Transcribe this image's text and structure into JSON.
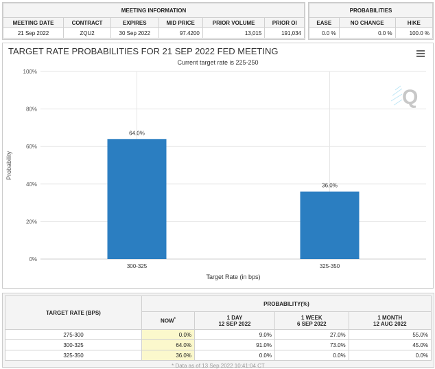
{
  "meeting_info": {
    "title": "MEETING INFORMATION",
    "headers": [
      "MEETING DATE",
      "CONTRACT",
      "EXPIRES",
      "MID PRICE",
      "PRIOR VOLUME",
      "PRIOR OI"
    ],
    "values": [
      "21 Sep 2022",
      "ZQU2",
      "30 Sep 2022",
      "97.4200",
      "13,015",
      "191,034"
    ]
  },
  "probabilities": {
    "title": "PROBABILITIES",
    "headers": [
      "EASE",
      "NO CHANGE",
      "HIKE"
    ],
    "values": [
      "0.0 %",
      "0.0 %",
      "100.0 %"
    ]
  },
  "chart_data": {
    "type": "bar",
    "title": "TARGET RATE PROBABILITIES FOR 21 SEP 2022 FED MEETING",
    "subtitle": "Current target rate is 225-250",
    "xlabel": "Target Rate (in bps)",
    "ylabel": "Probability",
    "categories": [
      "300-325",
      "325-350"
    ],
    "values": [
      64.0,
      36.0
    ],
    "data_labels": [
      "64.0%",
      "36.0%"
    ],
    "ylim": [
      0,
      100
    ],
    "yticks": [
      "0%",
      "20%",
      "40%",
      "60%",
      "80%",
      "100%"
    ],
    "grid": true,
    "color": "#2b7ec1"
  },
  "menu_icon": "hamburger-menu-icon",
  "prob_table": {
    "col_header": "TARGET RATE (BPS)",
    "group_header": "PROBABILITY(%)",
    "cols": [
      {
        "l1": "NOW",
        "l2": ""
      },
      {
        "l1": "1 DAY",
        "l2": "12 SEP 2022"
      },
      {
        "l1": "1 WEEK",
        "l2": "6 SEP 2022"
      },
      {
        "l1": "1 MONTH",
        "l2": "12 AUG 2022"
      }
    ],
    "now_mark": "*",
    "rows": [
      [
        "275-300",
        "0.0%",
        "9.0%",
        "27.0%",
        "55.0%"
      ],
      [
        "300-325",
        "64.0%",
        "91.0%",
        "73.0%",
        "45.0%"
      ],
      [
        "325-350",
        "36.0%",
        "0.0%",
        "0.0%",
        "0.0%"
      ]
    ],
    "footnote": "* Data as of 13 Sep 2022 10:41:04 CT"
  }
}
